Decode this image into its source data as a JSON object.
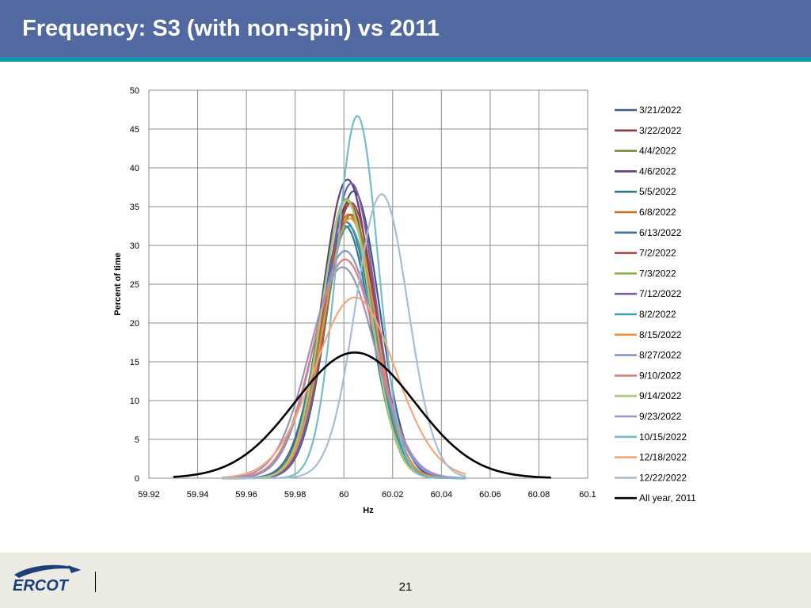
{
  "slide": {
    "title": "Frequency: S3 (with non-spin) vs 2011",
    "page_number": "21",
    "logo_text": "ERCOT"
  },
  "chart_data": {
    "type": "line",
    "xlabel": "Hz",
    "ylabel": "Percent of time",
    "xlim": [
      59.92,
      60.1
    ],
    "ylim": [
      0,
      50
    ],
    "x_ticks": [
      "59.92",
      "59.94",
      "59.96",
      "59.98",
      "60",
      "60.02",
      "60.04",
      "60.06",
      "60.08",
      "60.1"
    ],
    "y_ticks": [
      "0",
      "5",
      "10",
      "15",
      "20",
      "25",
      "30",
      "35",
      "40",
      "45",
      "50"
    ],
    "grid": true,
    "legend_position": "right",
    "series": [
      {
        "name": "3/21/2022",
        "color": "#3c5a8c",
        "mean": 60.004,
        "sd": 0.0104,
        "range": [
          59.95,
          60.05
        ],
        "peak": 37.0
      },
      {
        "name": "3/22/2022",
        "color": "#8b3a3a",
        "mean": 60.002,
        "sd": 0.0104,
        "range": [
          59.95,
          60.05
        ],
        "peak": 35.5
      },
      {
        "name": "4/4/2022",
        "color": "#6f8a3a",
        "mean": 60.003,
        "sd": 0.0104,
        "range": [
          59.95,
          60.05
        ],
        "peak": 34.0
      },
      {
        "name": "4/6/2022",
        "color": "#5b3f7a",
        "mean": 60.0015,
        "sd": 0.0104,
        "range": [
          59.95,
          60.05
        ],
        "peak": 38.5
      },
      {
        "name": "5/5/2022",
        "color": "#2f7a80",
        "mean": 60.0005,
        "sd": 0.0107,
        "range": [
          59.95,
          60.05
        ],
        "peak": 32.5
      },
      {
        "name": "6/8/2022",
        "color": "#d06a1e",
        "mean": 60.002,
        "sd": 0.0106,
        "range": [
          59.95,
          60.05
        ],
        "peak": 34.0
      },
      {
        "name": "6/13/2022",
        "color": "#3f6ea3",
        "mean": 60.001,
        "sd": 0.0109,
        "range": [
          59.95,
          60.05
        ],
        "peak": 33.0
      },
      {
        "name": "7/2/2022",
        "color": "#a8433c",
        "mean": 60.003,
        "sd": 0.0103,
        "range": [
          59.95,
          60.05
        ],
        "peak": 35.5
      },
      {
        "name": "7/3/2022",
        "color": "#8fb24e",
        "mean": 60.001,
        "sd": 0.0102,
        "range": [
          59.95,
          60.05
        ],
        "peak": 36.0
      },
      {
        "name": "7/12/2022",
        "color": "#7b5aa6",
        "mean": 60.003,
        "sd": 0.0101,
        "range": [
          59.95,
          60.05
        ],
        "peak": 38.0
      },
      {
        "name": "8/2/2022",
        "color": "#3aa2b5",
        "mean": 60.002,
        "sd": 0.0106,
        "range": [
          59.95,
          60.05
        ],
        "peak": 32.5
      },
      {
        "name": "8/15/2022",
        "color": "#ef8f3f",
        "mean": 60.0025,
        "sd": 0.0106,
        "range": [
          59.95,
          60.05
        ],
        "peak": 33.5
      },
      {
        "name": "8/27/2022",
        "color": "#7f97cb",
        "mean": 60.0005,
        "sd": 0.0125,
        "range": [
          59.95,
          60.05
        ],
        "peak": 29.3
      },
      {
        "name": "9/10/2022",
        "color": "#d9807c",
        "mean": 60.0005,
        "sd": 0.013,
        "range": [
          59.95,
          60.05
        ],
        "peak": 28.2
      },
      {
        "name": "9/14/2022",
        "color": "#a9c97a",
        "mean": 60.001,
        "sd": 0.0101,
        "range": [
          59.95,
          60.05
        ],
        "peak": 35.8
      },
      {
        "name": "9/23/2022",
        "color": "#a08fc3",
        "mean": 59.9995,
        "sd": 0.0135,
        "range": [
          59.95,
          60.05
        ],
        "peak": 27.2
      },
      {
        "name": "10/15/2022",
        "color": "#74bccb",
        "mean": 60.0055,
        "sd": 0.0085,
        "range": [
          59.95,
          60.05
        ],
        "peak": 46.7
      },
      {
        "name": "12/18/2022",
        "color": "#f4a67a",
        "mean": 60.0045,
        "sd": 0.0165,
        "range": [
          59.95,
          60.05
        ],
        "peak": 23.3
      },
      {
        "name": "12/22/2022",
        "color": "#a8bcd6",
        "mean": 60.0155,
        "sd": 0.0108,
        "range": [
          59.95,
          60.05
        ],
        "peak": 36.6
      },
      {
        "name": "All year, 2011",
        "color": "#000000",
        "mean": 60.0045,
        "sd": 0.0245,
        "range": [
          59.93,
          60.085
        ],
        "peak": 16.2
      }
    ]
  }
}
